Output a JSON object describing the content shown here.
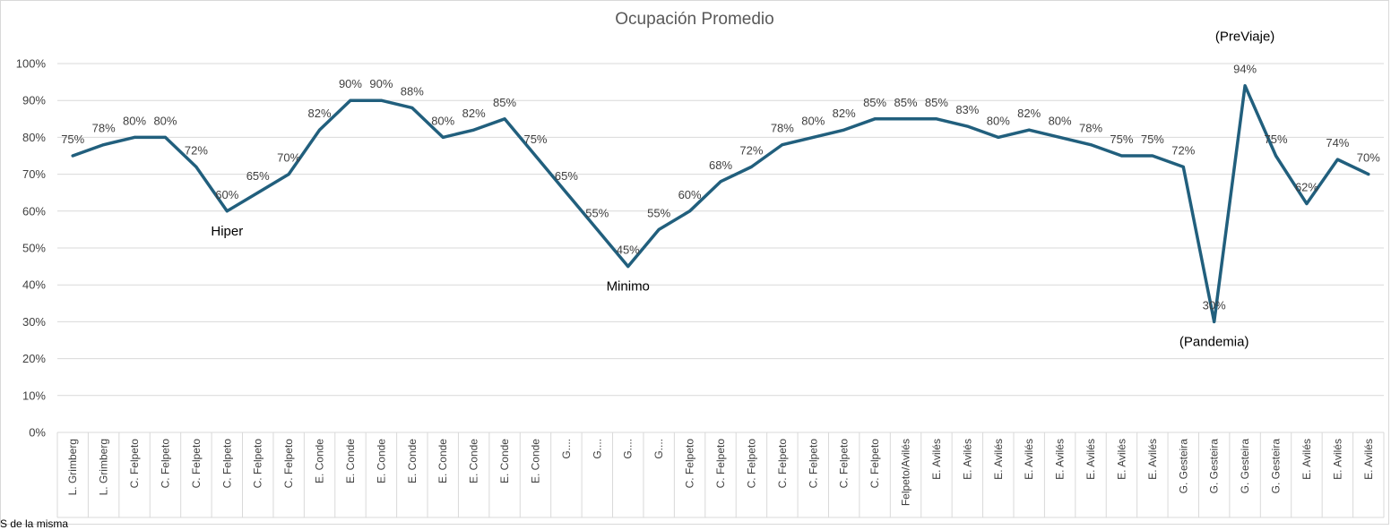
{
  "chart_data": {
    "type": "line",
    "title": "Ocupación Promedio",
    "xlabel": "",
    "ylabel": "",
    "ylim": [
      0,
      1
    ],
    "y_ticks": [
      "0%",
      "10%",
      "20%",
      "30%",
      "40%",
      "50%",
      "60%",
      "70%",
      "80%",
      "90%",
      "100%"
    ],
    "categories": [
      "L. Grimberg",
      "L. Grimberg",
      "C. Felpeto",
      "C. Felpeto",
      "C. Felpeto",
      "C. Felpeto",
      "C. Felpeto",
      "C. Felpeto",
      "E. Conde",
      "E. Conde",
      "E. Conde",
      "E. Conde",
      "E. Conde",
      "E. Conde",
      "E. Conde",
      "E. Conde",
      "G....",
      "G....",
      "G....",
      "G....",
      "C. Felpeto",
      "C. Felpeto",
      "C. Felpeto",
      "C. Felpeto",
      "C. Felpeto",
      "C. Felpeto",
      "C. Felpeto",
      "Felpeto/Avilés",
      "E. Avilés",
      "E. Avilés",
      "E. Avilés",
      "E. Avilés",
      "E. Avilés",
      "E. Avilés",
      "E. Avilés",
      "E. Avilés",
      "G. Gesteira",
      "G. Gesteira",
      "G. Gesteira",
      "G. Gesteira",
      "E. Avilés",
      "E. Avilés",
      "E. Avilés"
    ],
    "series": [
      {
        "name": "Ocupación Promedio",
        "color": "#215F7D",
        "values": [
          0.75,
          0.78,
          0.8,
          0.8,
          0.72,
          0.6,
          0.65,
          0.7,
          0.82,
          0.9,
          0.9,
          0.88,
          0.8,
          0.82,
          0.85,
          0.75,
          0.65,
          0.55,
          0.45,
          0.55,
          0.6,
          0.68,
          0.72,
          0.78,
          0.8,
          0.82,
          0.85,
          0.85,
          0.85,
          0.83,
          0.8,
          0.82,
          0.8,
          0.78,
          0.75,
          0.75,
          0.72,
          0.3,
          0.94,
          0.75,
          0.62,
          0.74,
          0.7
        ],
        "data_labels": [
          "75%",
          "78%",
          "80%",
          "80%",
          "72%",
          "60%",
          "65%",
          "70%",
          "82%",
          "90%",
          "90%",
          "88%",
          "80%",
          "82%",
          "85%",
          "75%",
          "65%",
          "55%",
          "45%",
          "55%",
          "60%",
          "68%",
          "72%",
          "78%",
          "80%",
          "82%",
          "85%",
          "85%",
          "85%",
          "83%",
          "80%",
          "82%",
          "80%",
          "78%",
          "75%",
          "75%",
          "72%",
          "30%",
          "94%",
          "75%",
          "62%",
          "74%",
          "70%"
        ]
      }
    ],
    "annotations": [
      {
        "index": 5,
        "text": "Hiper",
        "position": "below"
      },
      {
        "index": 18,
        "text": "Minimo",
        "position": "below"
      },
      {
        "index": 37,
        "text": "(Pandemia)",
        "position": "below"
      },
      {
        "index": 38,
        "text": "(PreViaje)",
        "position": "above"
      }
    ],
    "grid": true,
    "legend": "none"
  },
  "footer_fragment": "S de la misma"
}
